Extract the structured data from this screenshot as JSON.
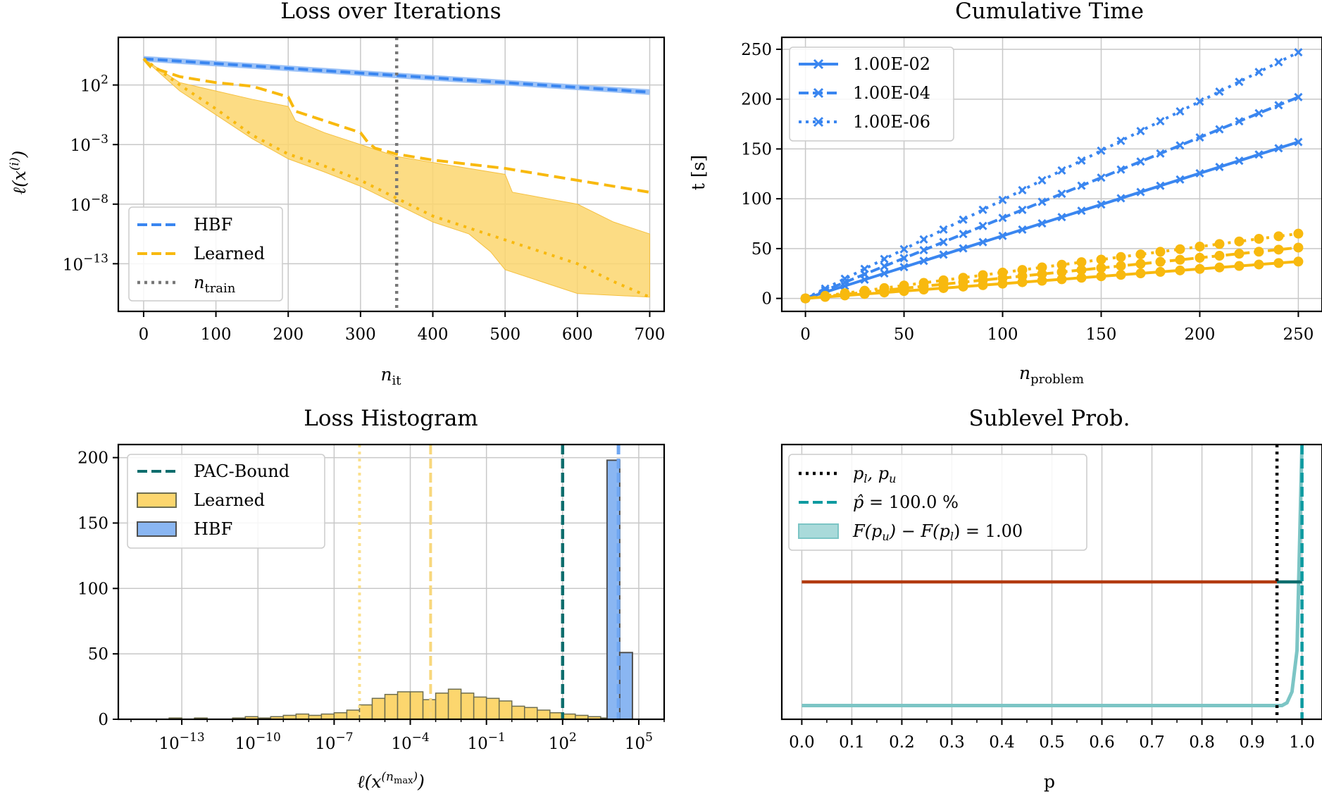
{
  "figure": {
    "colors": {
      "hbf": "#3a86f0",
      "learned": "#f8b90e",
      "learned_fill": "#fcd66e",
      "pac": "#0d6d6d",
      "phat": "#0c9aa0",
      "cdf_fill": "#7cc5c5",
      "brown": "#b23a10",
      "grid": "#c8c8c8"
    }
  },
  "chart_data": [
    {
      "type": "line",
      "title": "Loss over Iterations",
      "xlabel": "n_it",
      "ylabel": "ℓ(x^(i))",
      "x_scale": "linear",
      "y_scale": "log",
      "xlim": [
        -35,
        720
      ],
      "ylim_log10": [
        -17,
        6
      ],
      "xticks": [
        0,
        100,
        200,
        300,
        400,
        500,
        600,
        700
      ],
      "yticks_log10": [
        2,
        -3,
        -8,
        -13
      ],
      "grid": true,
      "legend_position": "lower-left",
      "legend": [
        "HBF",
        "Learned",
        "n_train"
      ],
      "vline": {
        "name": "n_train",
        "x": 350
      },
      "series": [
        {
          "name": "HBF",
          "style": "dashed",
          "x": [
            0,
            100,
            200,
            300,
            400,
            500,
            600,
            700
          ],
          "log10_y": [
            4.2,
            3.8,
            3.4,
            3.0,
            2.6,
            2.2,
            1.8,
            1.4
          ]
        },
        {
          "name": "Learned",
          "style": "dashed",
          "x": [
            0,
            10,
            50,
            100,
            150,
            200,
            210,
            250,
            300,
            310,
            320,
            350,
            400,
            500,
            600,
            700
          ],
          "log10_y": [
            4.2,
            3.5,
            2.7,
            2.2,
            1.9,
            1.0,
            -0.2,
            -1.0,
            -2.0,
            -2.8,
            -3.3,
            -3.8,
            -4.3,
            -5.0,
            -6.0,
            -7.0
          ]
        },
        {
          "name": "Learned (median)",
          "style": "dotted",
          "x": [
            0,
            50,
            100,
            150,
            200,
            250,
            300,
            350,
            400,
            450,
            500,
            550,
            600,
            650,
            700
          ],
          "log10_y": [
            4.2,
            2.0,
            0.0,
            -2.2,
            -3.8,
            -4.8,
            -6.0,
            -7.5,
            -9.0,
            -10.0,
            -11.0,
            -12.0,
            -13.0,
            -14.5,
            -15.8
          ]
        },
        {
          "name": "Learned (band upper)",
          "style": "band",
          "x": [
            0,
            50,
            100,
            150,
            200,
            210,
            250,
            300,
            350,
            400,
            500,
            510,
            600,
            650,
            700
          ],
          "log10_y": [
            4.2,
            2.2,
            1.5,
            0.8,
            0.2,
            -1.0,
            -2.0,
            -3.0,
            -4.0,
            -4.5,
            -5.5,
            -7.0,
            -8.0,
            -9.5,
            -10.5
          ]
        },
        {
          "name": "Learned (band lower)",
          "style": "band",
          "x": [
            0,
            50,
            100,
            150,
            200,
            250,
            300,
            350,
            400,
            450,
            480,
            500,
            550,
            600,
            700
          ],
          "log10_y": [
            4.2,
            1.5,
            -0.5,
            -2.5,
            -4.2,
            -5.3,
            -6.5,
            -8.0,
            -9.5,
            -10.5,
            -12.0,
            -13.5,
            -14.5,
            -15.5,
            -15.8
          ]
        }
      ]
    },
    {
      "type": "line",
      "title": "Cumulative Time",
      "xlabel": "n_problem",
      "ylabel": "t [s]",
      "xlim": [
        -12,
        262
      ],
      "ylim": [
        -13,
        262
      ],
      "xticks": [
        0,
        50,
        100,
        150,
        200,
        250
      ],
      "yticks": [
        0,
        50,
        100,
        150,
        200,
        250
      ],
      "grid": true,
      "legend_position": "top-left",
      "legend": [
        "1.00E-02",
        "1.00E-04",
        "1.00E-06"
      ],
      "series": [
        {
          "name": "1.00E-02",
          "group": "hbf",
          "marker": "x",
          "style": "solid",
          "x": [
            0,
            250
          ],
          "y": [
            0,
            157
          ]
        },
        {
          "name": "1.00E-04",
          "group": "hbf",
          "marker": "x",
          "style": "dashed",
          "x": [
            0,
            250
          ],
          "y": [
            0,
            202
          ]
        },
        {
          "name": "1.00E-06",
          "group": "hbf",
          "marker": "x",
          "style": "dotted",
          "x": [
            0,
            250
          ],
          "y": [
            0,
            247
          ]
        },
        {
          "name": "learned 1.00E-02",
          "group": "learned",
          "marker": "o",
          "style": "solid",
          "x": [
            0,
            250
          ],
          "y": [
            0,
            37
          ]
        },
        {
          "name": "learned 1.00E-04",
          "group": "learned",
          "marker": "o",
          "style": "dashed",
          "x": [
            0,
            250
          ],
          "y": [
            0,
            51
          ]
        },
        {
          "name": "learned 1.00E-06",
          "group": "learned",
          "marker": "o",
          "style": "dotted",
          "x": [
            0,
            250
          ],
          "y": [
            0,
            65
          ]
        }
      ]
    },
    {
      "type": "bar",
      "title": "Loss Histogram",
      "xlabel": "ℓ(x^(n_max))",
      "x_scale": "log",
      "xlim_log10": [
        -15.5,
        6.0
      ],
      "ylim": [
        0,
        210
      ],
      "xticks_log10": [
        -13,
        -10,
        -7,
        -4,
        -1,
        2,
        5
      ],
      "yticks": [
        0,
        50,
        100,
        150,
        200
      ],
      "grid": true,
      "legend_position": "top-left",
      "legend": [
        "PAC-Bound",
        "Learned",
        "HBF"
      ],
      "vlines_log10": {
        "PAC-Bound": 2.0,
        "Learned dotted": -6.0,
        "Learned dashed": -3.2,
        "HBF": 4.2
      },
      "learned_bins_log10_start": -13.5,
      "learned_bin_width_log10": 0.5,
      "learned_counts": [
        1,
        0,
        1,
        0,
        0,
        1,
        2,
        1,
        2,
        3,
        4,
        3,
        4,
        5,
        7,
        11,
        16,
        19,
        21,
        21,
        15,
        20,
        23,
        20,
        17,
        16,
        14,
        10,
        9,
        7,
        5,
        4,
        3,
        2,
        1,
        1
      ],
      "hbf_bins_log10": [
        [
          3.75,
          4.25
        ],
        [
          4.25,
          4.75
        ]
      ],
      "hbf_counts": [
        198,
        51
      ]
    },
    {
      "type": "line",
      "title": "Sublevel Prob.",
      "xlabel": "p",
      "xlim": [
        -0.04,
        1.04
      ],
      "ylim": [
        0,
        1
      ],
      "xticks": [
        0.0,
        0.1,
        0.2,
        0.3,
        0.4,
        0.5,
        0.6,
        0.7,
        0.8,
        0.9,
        1.0
      ],
      "grid": true,
      "legend_position": "top-left",
      "legend": [
        "p_l, p_u",
        "p̂ = 100.0 %",
        "F(p_u) − F(p_l) = 1.00"
      ],
      "vlines": {
        "p_l": 0.95,
        "p_u": 1.0,
        "p_hat": 1.0
      },
      "series": [
        {
          "name": "likelihood",
          "x": [
            0.0,
            0.95
          ],
          "y": [
            0.5,
            0.5
          ]
        },
        {
          "name": "interval",
          "x": [
            0.95,
            1.0
          ],
          "y": [
            0.5,
            0.5
          ]
        },
        {
          "name": "cdf",
          "x": [
            0.0,
            0.96,
            0.97,
            0.98,
            0.99,
            1.0
          ],
          "y": [
            0.05,
            0.05,
            0.06,
            0.1,
            0.25,
            1.0
          ]
        }
      ]
    }
  ]
}
